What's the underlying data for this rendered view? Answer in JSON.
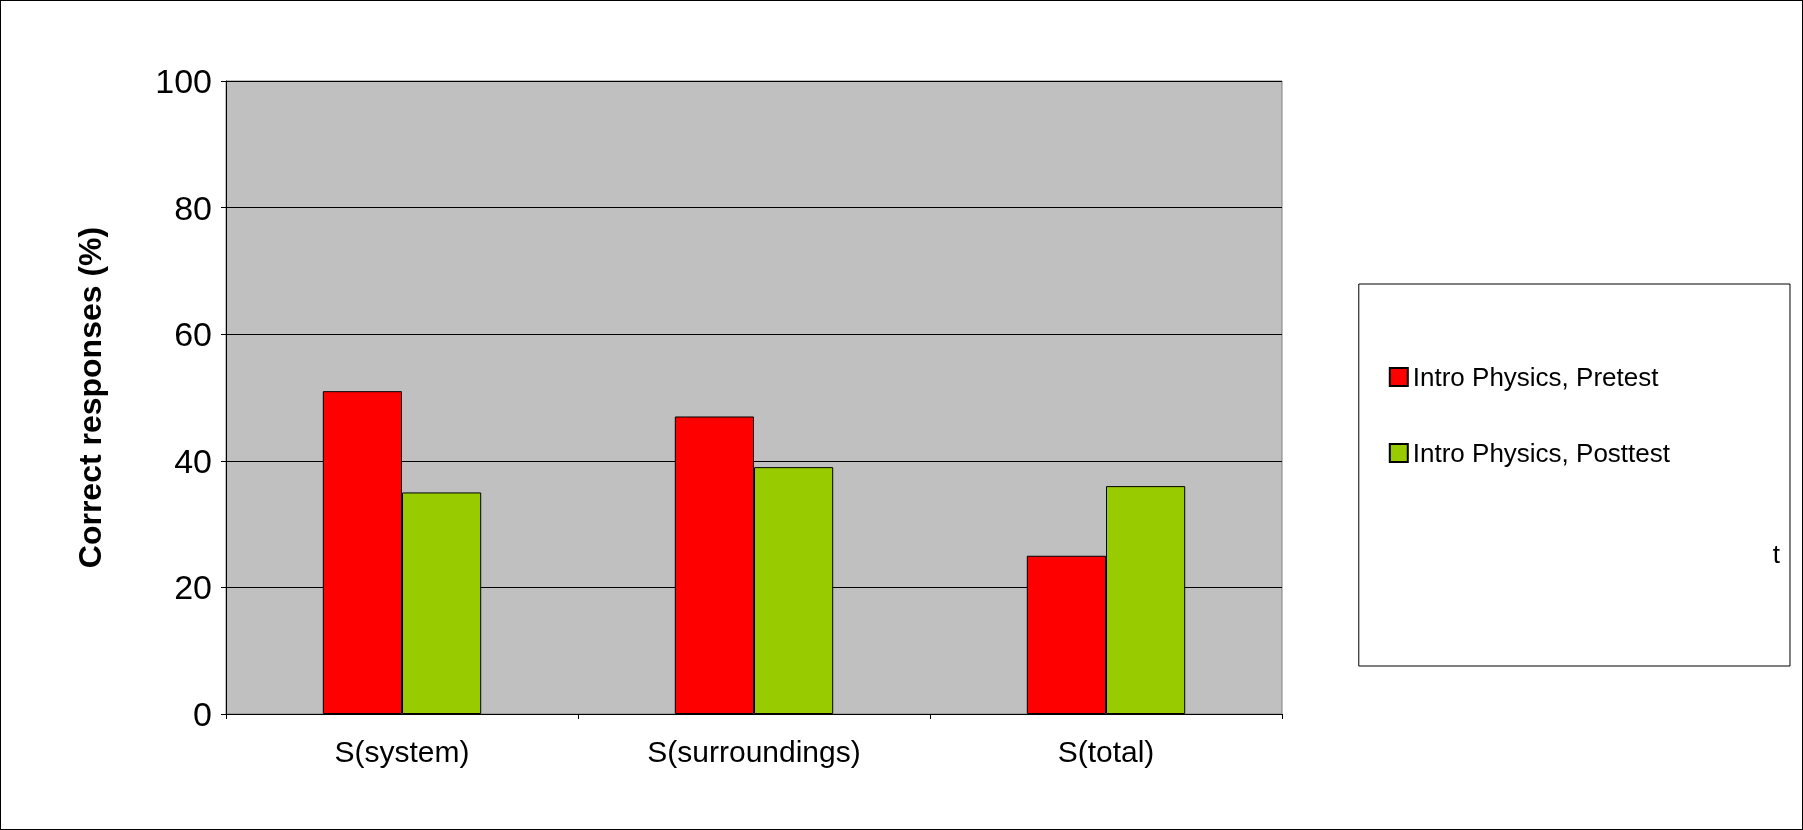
{
  "chart_data": {
    "type": "bar",
    "ylabel": "Correct responses (%)",
    "categories": [
      "S(system)",
      "S(surroundings)",
      "S(total)"
    ],
    "series": [
      {
        "name": "Intro Physics, Pretest",
        "color": "#ff0000",
        "values": [
          51,
          47,
          25
        ]
      },
      {
        "name": "Intro Physics, Posttest",
        "color": "#99cc00",
        "values": [
          35,
          39,
          36
        ]
      }
    ],
    "ylim": [
      0,
      100
    ],
    "yticks": [
      0,
      20,
      40,
      60,
      80,
      100
    ],
    "grid": "y",
    "legend": "right",
    "annotations": [
      "t"
    ]
  }
}
